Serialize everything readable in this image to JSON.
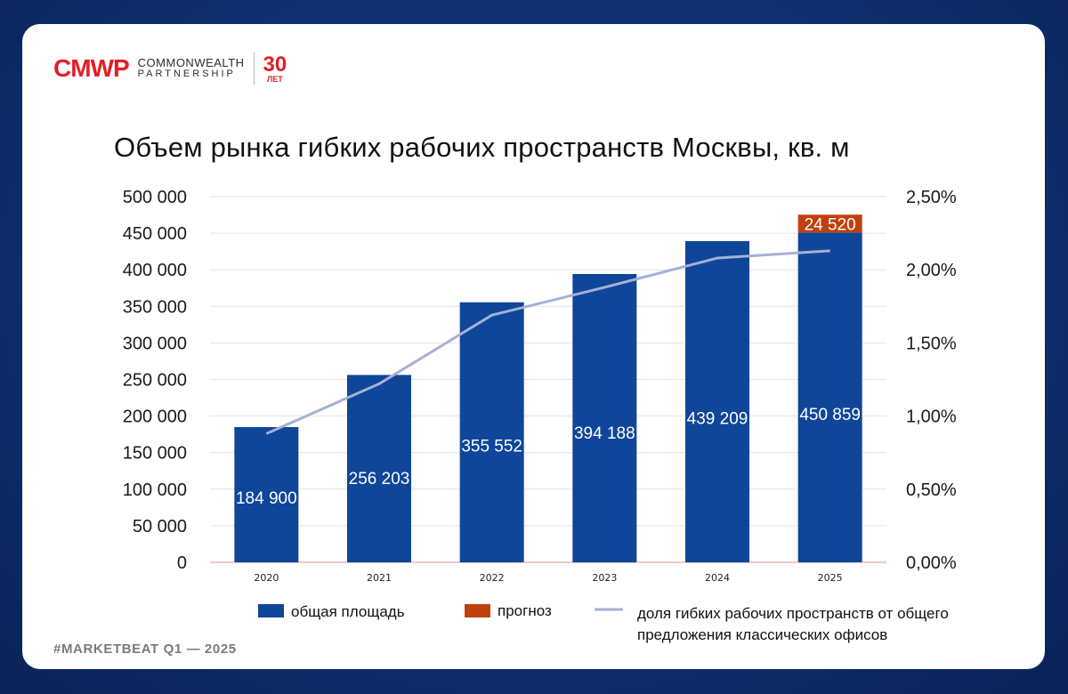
{
  "logo": {
    "mark": "CMWP",
    "line1": "COMMONWEALTH",
    "line2": "PARTNERSHIP",
    "anniversary_number": "30",
    "anniversary_label": "ЛЕТ"
  },
  "footer": "#MARKETBEAT Q1  —  2025",
  "colors": {
    "bar": "#0f4699",
    "forecast": "#c0410e",
    "line": "#a5b0d6",
    "brand_red": "#e21f26"
  },
  "chart_data": {
    "type": "bar",
    "title": "Объем рынка гибких рабочих пространств Москвы, кв. м",
    "categories": [
      "2020",
      "2021",
      "2022",
      "2023",
      "2024",
      "2025"
    ],
    "series": [
      {
        "name": "общая площадь",
        "type": "bar",
        "values": [
          184900,
          256203,
          355552,
          394188,
          439209,
          450859
        ],
        "labels": [
          "184 900",
          "256 203",
          "355 552",
          "394 188",
          "439 209",
          "450 859"
        ]
      },
      {
        "name": "прогноз",
        "type": "stacked-bar",
        "values": [
          0,
          0,
          0,
          0,
          0,
          24520
        ],
        "labels": [
          "",
          "",
          "",
          "",
          "",
          "24 520"
        ]
      },
      {
        "name": "доля гибких рабочих пространств от общего предложения классических офисов",
        "type": "line",
        "axis": "right",
        "values": [
          0.88,
          1.22,
          1.69,
          1.88,
          2.08,
          2.13
        ]
      }
    ],
    "legend_lines": [
      "общая площадь",
      "прогноз",
      "доля гибких рабочих пространств от общего",
      "предложения классических офисов"
    ],
    "ylim_left": [
      0,
      500000
    ],
    "yticks_left": [
      "0",
      "50 000",
      "100 000",
      "150 000",
      "200 000",
      "250 000",
      "300 000",
      "350 000",
      "400 000",
      "450 000",
      "500 000"
    ],
    "ylim_right": [
      0,
      2.5
    ],
    "yticks_right": [
      "0,00%",
      "0,50%",
      "1,00%",
      "1,50%",
      "2,00%",
      "2,50%"
    ],
    "grid": true,
    "legend_position": "bottom"
  }
}
